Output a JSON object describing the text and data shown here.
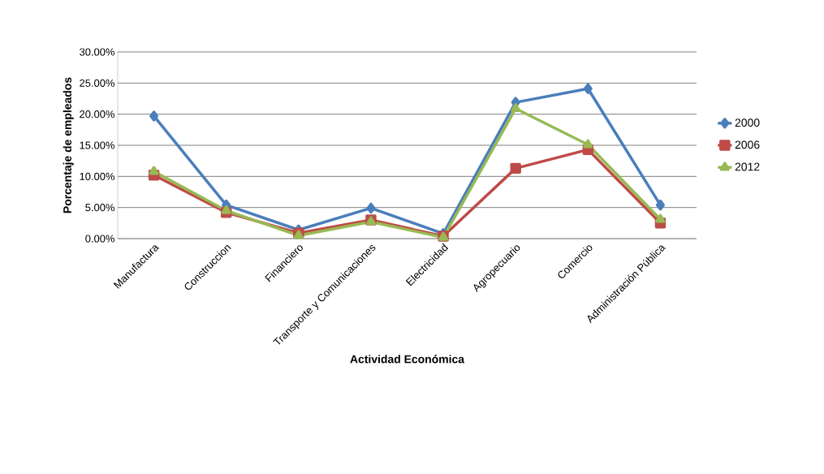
{
  "chart_data": {
    "type": "line",
    "xlabel": "Actividad Económica",
    "ylabel": "Porcentaje de empleados",
    "categories": [
      "Manufactura",
      "Construccion",
      "Financiero",
      "Transporte y Comunicaciones",
      "Electricidad",
      "Agropecuario",
      "Comercio",
      "Administración Pública"
    ],
    "series": [
      {
        "name": "2000",
        "color": "#4a7ebb",
        "marker": "diamond",
        "values": [
          19.7,
          5.4,
          1.4,
          4.9,
          0.8,
          21.9,
          24.1,
          5.4
        ]
      },
      {
        "name": "2006",
        "color": "#be4b48",
        "marker": "square",
        "values": [
          10.2,
          4.2,
          0.9,
          3.0,
          0.4,
          11.3,
          14.3,
          2.5
        ]
      },
      {
        "name": "2012",
        "color": "#98b954",
        "marker": "triangle",
        "values": [
          10.8,
          4.5,
          0.5,
          2.7,
          0.2,
          20.9,
          15.1,
          3.1
        ]
      }
    ],
    "ylim": [
      0,
      30
    ],
    "yticks": [
      {
        "value": 0,
        "label": "0.00%"
      },
      {
        "value": 5,
        "label": "5.00%"
      },
      {
        "value": 10,
        "label": "10.00%"
      },
      {
        "value": 15,
        "label": "15.00%"
      },
      {
        "value": 20,
        "label": "20.00%"
      },
      {
        "value": 25,
        "label": "25.00%"
      },
      {
        "value": 30,
        "label": "30.00%"
      }
    ],
    "grid": "y",
    "legend": "right",
    "line_style": "solid"
  }
}
